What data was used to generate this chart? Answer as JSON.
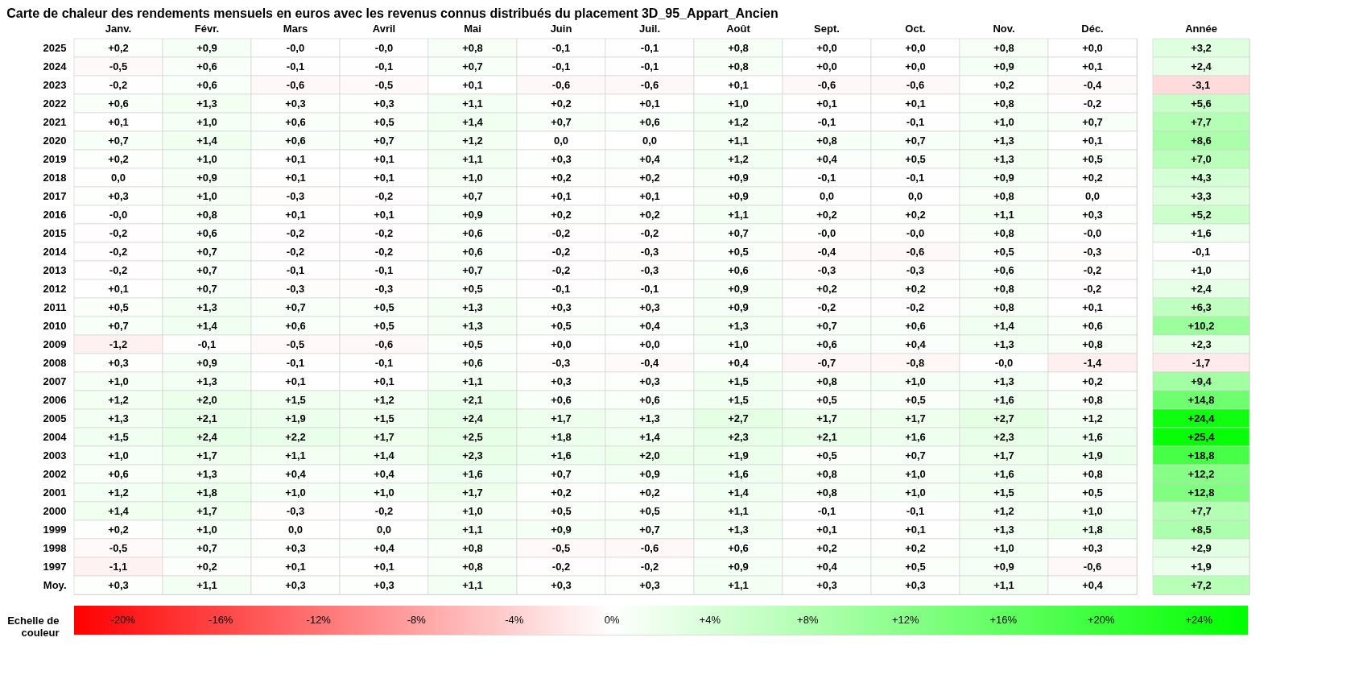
{
  "chart_data": {
    "type": "heatmap",
    "title": "Carte de chaleur des rendements mensuels en euros avec les revenus connus distribués du placement 3D_95_Appart_Ancien",
    "categories": [
      "Janv.",
      "Févr.",
      "Mars",
      "Avril",
      "Mai",
      "Juin",
      "Juil.",
      "Août",
      "Sept.",
      "Oct.",
      "Nov.",
      "Déc.",
      "Année"
    ],
    "y_categories": [
      "2025",
      "2024",
      "2023",
      "2022",
      "2021",
      "2020",
      "2019",
      "2018",
      "2017",
      "2016",
      "2015",
      "2014",
      "2013",
      "2012",
      "2011",
      "2010",
      "2009",
      "2008",
      "2007",
      "2006",
      "2005",
      "2004",
      "2003",
      "2002",
      "2001",
      "2000",
      "1999",
      "1998",
      "1997",
      "Moy."
    ],
    "cells": [
      [
        0.2,
        0.9,
        -0.0,
        -0.0,
        0.8,
        -0.1,
        -0.1,
        0.8,
        0.0,
        0.0,
        0.8,
        0.0,
        3.2
      ],
      [
        -0.5,
        0.6,
        -0.1,
        -0.1,
        0.7,
        -0.1,
        -0.1,
        0.8,
        0.0,
        0.0,
        0.9,
        0.1,
        2.4
      ],
      [
        -0.2,
        0.6,
        -0.6,
        -0.5,
        0.1,
        -0.6,
        -0.6,
        0.1,
        -0.6,
        -0.6,
        0.2,
        -0.4,
        -3.1
      ],
      [
        0.6,
        1.3,
        0.3,
        0.3,
        1.1,
        0.2,
        0.1,
        1.0,
        0.1,
        0.1,
        0.8,
        -0.2,
        5.6
      ],
      [
        0.1,
        1.0,
        0.6,
        0.5,
        1.4,
        0.7,
        0.6,
        1.2,
        -0.1,
        -0.1,
        1.0,
        0.7,
        7.7
      ],
      [
        0.7,
        1.4,
        0.6,
        0.7,
        1.2,
        0.0,
        0.0,
        1.1,
        0.8,
        0.7,
        1.3,
        0.1,
        8.6
      ],
      [
        0.2,
        1.0,
        0.1,
        0.1,
        1.1,
        0.3,
        0.4,
        1.2,
        0.4,
        0.5,
        1.3,
        0.5,
        7.0
      ],
      [
        0.0,
        0.9,
        0.1,
        0.1,
        1.0,
        0.2,
        0.2,
        0.9,
        -0.1,
        -0.1,
        0.9,
        0.2,
        4.3
      ],
      [
        0.3,
        1.0,
        -0.3,
        -0.2,
        0.7,
        0.1,
        0.1,
        0.9,
        0.0,
        0.0,
        0.8,
        0.0,
        3.3
      ],
      [
        -0.0,
        0.8,
        0.1,
        0.1,
        0.9,
        0.2,
        0.2,
        1.1,
        0.2,
        0.2,
        1.1,
        0.3,
        5.2
      ],
      [
        -0.2,
        0.6,
        -0.2,
        -0.2,
        0.6,
        -0.2,
        -0.2,
        0.7,
        -0.0,
        -0.0,
        0.8,
        -0.0,
        1.6
      ],
      [
        -0.2,
        0.7,
        -0.2,
        -0.2,
        0.6,
        -0.2,
        -0.3,
        0.5,
        -0.4,
        -0.6,
        0.5,
        -0.3,
        -0.1
      ],
      [
        -0.2,
        0.7,
        -0.1,
        -0.1,
        0.7,
        -0.2,
        -0.3,
        0.6,
        -0.3,
        -0.3,
        0.6,
        -0.2,
        1.0
      ],
      [
        0.1,
        0.7,
        -0.3,
        -0.3,
        0.5,
        -0.1,
        -0.1,
        0.9,
        0.2,
        0.2,
        0.8,
        -0.2,
        2.4
      ],
      [
        0.5,
        1.3,
        0.7,
        0.5,
        1.3,
        0.3,
        0.3,
        0.9,
        -0.2,
        -0.2,
        0.8,
        0.1,
        6.3
      ],
      [
        0.7,
        1.4,
        0.6,
        0.5,
        1.3,
        0.5,
        0.4,
        1.3,
        0.7,
        0.6,
        1.4,
        0.6,
        10.2
      ],
      [
        -1.2,
        -0.1,
        -0.5,
        -0.6,
        0.5,
        0.0,
        0.0,
        1.0,
        0.6,
        0.4,
        1.3,
        0.8,
        2.3
      ],
      [
        0.3,
        0.9,
        -0.1,
        -0.1,
        0.6,
        -0.3,
        -0.4,
        0.4,
        -0.7,
        -0.8,
        -0.0,
        -1.4,
        -1.7
      ],
      [
        1.0,
        1.3,
        0.1,
        0.1,
        1.1,
        0.3,
        0.3,
        1.5,
        0.8,
        1.0,
        1.3,
        0.2,
        9.4
      ],
      [
        1.2,
        2.0,
        1.5,
        1.2,
        2.1,
        0.6,
        0.6,
        1.5,
        0.5,
        0.5,
        1.6,
        0.8,
        14.8
      ],
      [
        1.3,
        2.1,
        1.9,
        1.5,
        2.4,
        1.7,
        1.3,
        2.7,
        1.7,
        1.7,
        2.7,
        1.2,
        24.4
      ],
      [
        1.5,
        2.4,
        2.2,
        1.7,
        2.5,
        1.8,
        1.4,
        2.3,
        2.1,
        1.6,
        2.3,
        1.6,
        25.4
      ],
      [
        1.0,
        1.7,
        1.1,
        1.4,
        2.3,
        1.6,
        2.0,
        1.9,
        0.5,
        0.7,
        1.7,
        1.9,
        18.8
      ],
      [
        0.6,
        1.3,
        0.4,
        0.4,
        1.6,
        0.7,
        0.9,
        1.6,
        0.8,
        1.0,
        1.6,
        0.8,
        12.2
      ],
      [
        1.2,
        1.8,
        1.0,
        1.0,
        1.7,
        0.2,
        0.2,
        1.4,
        0.8,
        1.0,
        1.5,
        0.5,
        12.8
      ],
      [
        1.4,
        1.7,
        -0.3,
        -0.2,
        1.0,
        0.5,
        0.5,
        1.1,
        -0.1,
        -0.1,
        1.2,
        1.0,
        7.7
      ],
      [
        0.2,
        1.0,
        0.0,
        0.0,
        1.1,
        0.9,
        0.7,
        1.3,
        0.1,
        0.1,
        1.3,
        1.8,
        8.5
      ],
      [
        -0.5,
        0.7,
        0.3,
        0.4,
        0.8,
        -0.5,
        -0.6,
        0.6,
        0.2,
        0.2,
        1.0,
        0.3,
        2.9
      ],
      [
        -1.1,
        0.2,
        0.1,
        0.1,
        0.8,
        -0.2,
        -0.2,
        0.9,
        0.4,
        0.5,
        0.9,
        -0.6,
        1.9
      ],
      [
        0.3,
        1.1,
        0.3,
        0.3,
        1.1,
        0.3,
        0.3,
        1.1,
        0.3,
        0.3,
        1.1,
        0.4,
        7.2
      ]
    ],
    "cell_labels": [
      [
        "+0,2",
        "+0,9",
        "-0,0",
        "-0,0",
        "+0,8",
        "-0,1",
        "-0,1",
        "+0,8",
        "+0,0",
        "+0,0",
        "+0,8",
        "+0,0",
        "+3,2"
      ],
      [
        "-0,5",
        "+0,6",
        "-0,1",
        "-0,1",
        "+0,7",
        "-0,1",
        "-0,1",
        "+0,8",
        "+0,0",
        "+0,0",
        "+0,9",
        "+0,1",
        "+2,4"
      ],
      [
        "-0,2",
        "+0,6",
        "-0,6",
        "-0,5",
        "+0,1",
        "-0,6",
        "-0,6",
        "+0,1",
        "-0,6",
        "-0,6",
        "+0,2",
        "-0,4",
        "-3,1"
      ],
      [
        "+0,6",
        "+1,3",
        "+0,3",
        "+0,3",
        "+1,1",
        "+0,2",
        "+0,1",
        "+1,0",
        "+0,1",
        "+0,1",
        "+0,8",
        "-0,2",
        "+5,6"
      ],
      [
        "+0,1",
        "+1,0",
        "+0,6",
        "+0,5",
        "+1,4",
        "+0,7",
        "+0,6",
        "+1,2",
        "-0,1",
        "-0,1",
        "+1,0",
        "+0,7",
        "+7,7"
      ],
      [
        "+0,7",
        "+1,4",
        "+0,6",
        "+0,7",
        "+1,2",
        "0,0",
        "0,0",
        "+1,1",
        "+0,8",
        "+0,7",
        "+1,3",
        "+0,1",
        "+8,6"
      ],
      [
        "+0,2",
        "+1,0",
        "+0,1",
        "+0,1",
        "+1,1",
        "+0,3",
        "+0,4",
        "+1,2",
        "+0,4",
        "+0,5",
        "+1,3",
        "+0,5",
        "+7,0"
      ],
      [
        "0,0",
        "+0,9",
        "+0,1",
        "+0,1",
        "+1,0",
        "+0,2",
        "+0,2",
        "+0,9",
        "-0,1",
        "-0,1",
        "+0,9",
        "+0,2",
        "+4,3"
      ],
      [
        "+0,3",
        "+1,0",
        "-0,3",
        "-0,2",
        "+0,7",
        "+0,1",
        "+0,1",
        "+0,9",
        "0,0",
        "0,0",
        "+0,8",
        "0,0",
        "+3,3"
      ],
      [
        "-0,0",
        "+0,8",
        "+0,1",
        "+0,1",
        "+0,9",
        "+0,2",
        "+0,2",
        "+1,1",
        "+0,2",
        "+0,2",
        "+1,1",
        "+0,3",
        "+5,2"
      ],
      [
        "-0,2",
        "+0,6",
        "-0,2",
        "-0,2",
        "+0,6",
        "-0,2",
        "-0,2",
        "+0,7",
        "-0,0",
        "-0,0",
        "+0,8",
        "-0,0",
        "+1,6"
      ],
      [
        "-0,2",
        "+0,7",
        "-0,2",
        "-0,2",
        "+0,6",
        "-0,2",
        "-0,3",
        "+0,5",
        "-0,4",
        "-0,6",
        "+0,5",
        "-0,3",
        "-0,1"
      ],
      [
        "-0,2",
        "+0,7",
        "-0,1",
        "-0,1",
        "+0,7",
        "-0,2",
        "-0,3",
        "+0,6",
        "-0,3",
        "-0,3",
        "+0,6",
        "-0,2",
        "+1,0"
      ],
      [
        "+0,1",
        "+0,7",
        "-0,3",
        "-0,3",
        "+0,5",
        "-0,1",
        "-0,1",
        "+0,9",
        "+0,2",
        "+0,2",
        "+0,8",
        "-0,2",
        "+2,4"
      ],
      [
        "+0,5",
        "+1,3",
        "+0,7",
        "+0,5",
        "+1,3",
        "+0,3",
        "+0,3",
        "+0,9",
        "-0,2",
        "-0,2",
        "+0,8",
        "+0,1",
        "+6,3"
      ],
      [
        "+0,7",
        "+1,4",
        "+0,6",
        "+0,5",
        "+1,3",
        "+0,5",
        "+0,4",
        "+1,3",
        "+0,7",
        "+0,6",
        "+1,4",
        "+0,6",
        "+10,2"
      ],
      [
        "-1,2",
        "-0,1",
        "-0,5",
        "-0,6",
        "+0,5",
        "+0,0",
        "+0,0",
        "+1,0",
        "+0,6",
        "+0,4",
        "+1,3",
        "+0,8",
        "+2,3"
      ],
      [
        "+0,3",
        "+0,9",
        "-0,1",
        "-0,1",
        "+0,6",
        "-0,3",
        "-0,4",
        "+0,4",
        "-0,7",
        "-0,8",
        "-0,0",
        "-1,4",
        "-1,7"
      ],
      [
        "+1,0",
        "+1,3",
        "+0,1",
        "+0,1",
        "+1,1",
        "+0,3",
        "+0,3",
        "+1,5",
        "+0,8",
        "+1,0",
        "+1,3",
        "+0,2",
        "+9,4"
      ],
      [
        "+1,2",
        "+2,0",
        "+1,5",
        "+1,2",
        "+2,1",
        "+0,6",
        "+0,6",
        "+1,5",
        "+0,5",
        "+0,5",
        "+1,6",
        "+0,8",
        "+14,8"
      ],
      [
        "+1,3",
        "+2,1",
        "+1,9",
        "+1,5",
        "+2,4",
        "+1,7",
        "+1,3",
        "+2,7",
        "+1,7",
        "+1,7",
        "+2,7",
        "+1,2",
        "+24,4"
      ],
      [
        "+1,5",
        "+2,4",
        "+2,2",
        "+1,7",
        "+2,5",
        "+1,8",
        "+1,4",
        "+2,3",
        "+2,1",
        "+1,6",
        "+2,3",
        "+1,6",
        "+25,4"
      ],
      [
        "+1,0",
        "+1,7",
        "+1,1",
        "+1,4",
        "+2,3",
        "+1,6",
        "+2,0",
        "+1,9",
        "+0,5",
        "+0,7",
        "+1,7",
        "+1,9",
        "+18,8"
      ],
      [
        "+0,6",
        "+1,3",
        "+0,4",
        "+0,4",
        "+1,6",
        "+0,7",
        "+0,9",
        "+1,6",
        "+0,8",
        "+1,0",
        "+1,6",
        "+0,8",
        "+12,2"
      ],
      [
        "+1,2",
        "+1,8",
        "+1,0",
        "+1,0",
        "+1,7",
        "+0,2",
        "+0,2",
        "+1,4",
        "+0,8",
        "+1,0",
        "+1,5",
        "+0,5",
        "+12,8"
      ],
      [
        "+1,4",
        "+1,7",
        "-0,3",
        "-0,2",
        "+1,0",
        "+0,5",
        "+0,5",
        "+1,1",
        "-0,1",
        "-0,1",
        "+1,2",
        "+1,0",
        "+7,7"
      ],
      [
        "+0,2",
        "+1,0",
        "0,0",
        "0,0",
        "+1,1",
        "+0,9",
        "+0,7",
        "+1,3",
        "+0,1",
        "+0,1",
        "+1,3",
        "+1,8",
        "+8,5"
      ],
      [
        "-0,5",
        "+0,7",
        "+0,3",
        "+0,4",
        "+0,8",
        "-0,5",
        "-0,6",
        "+0,6",
        "+0,2",
        "+0,2",
        "+1,0",
        "+0,3",
        "+2,9"
      ],
      [
        "-1,1",
        "+0,2",
        "+0,1",
        "+0,1",
        "+0,8",
        "-0,2",
        "-0,2",
        "+0,9",
        "+0,4",
        "+0,5",
        "+0,9",
        "-0,6",
        "+1,9"
      ],
      [
        "+0,3",
        "+1,1",
        "+0,3",
        "+0,3",
        "+1,1",
        "+0,3",
        "+0,3",
        "+1,1",
        "+0,3",
        "+0,3",
        "+1,1",
        "+0,4",
        "+7,2"
      ]
    ],
    "clabel": "Echelle de couleur",
    "clim": [
      -22,
      26
    ],
    "cticks": [
      {
        "value": -20,
        "label": "-20%"
      },
      {
        "value": -16,
        "label": "-16%"
      },
      {
        "value": -12,
        "label": "-12%"
      },
      {
        "value": -8,
        "label": "-8%"
      },
      {
        "value": -4,
        "label": "-4%"
      },
      {
        "value": 0,
        "label": "0%"
      },
      {
        "value": 4,
        "label": "+4%"
      },
      {
        "value": 8,
        "label": "+8%"
      },
      {
        "value": 12,
        "label": "+12%"
      },
      {
        "value": 16,
        "label": "+16%"
      },
      {
        "value": 20,
        "label": "+20%"
      },
      {
        "value": 24,
        "label": "+24%"
      }
    ]
  }
}
